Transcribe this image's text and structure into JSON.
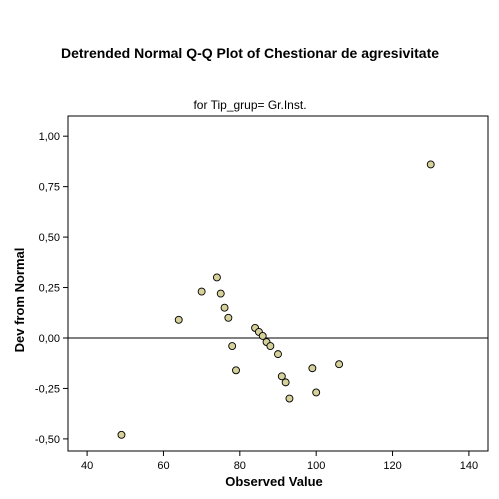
{
  "chart_data": {
    "type": "scatter",
    "title": "Detrended Normal Q-Q Plot of Chestionar de agresivitate",
    "subtitle": "for Tip_grup= Gr.Inst.",
    "xlabel": "Observed Value",
    "ylabel": "Dev from Normal",
    "xlim": [
      35,
      145
    ],
    "ylim": [
      -0.56,
      1.1
    ],
    "xticks": [
      "40",
      "60",
      "80",
      "100",
      "120",
      "140"
    ],
    "xtick_values": [
      40,
      60,
      80,
      100,
      120,
      140
    ],
    "yticks": [
      "-0,50",
      "-0,25",
      "0,00",
      "0,25",
      "0,50",
      "0,75",
      "1,00"
    ],
    "ytick_values": [
      -0.5,
      -0.25,
      0,
      0.25,
      0.5,
      0.75,
      1.0
    ],
    "reference_line": 0,
    "grid": false,
    "marker_color": "#d6d09a",
    "points": [
      {
        "x": 49,
        "y": -0.48
      },
      {
        "x": 64,
        "y": 0.09
      },
      {
        "x": 70,
        "y": 0.23
      },
      {
        "x": 74,
        "y": 0.3
      },
      {
        "x": 75,
        "y": 0.22
      },
      {
        "x": 76,
        "y": 0.15
      },
      {
        "x": 77,
        "y": 0.1
      },
      {
        "x": 78,
        "y": -0.04
      },
      {
        "x": 79,
        "y": -0.16
      },
      {
        "x": 84,
        "y": 0.05
      },
      {
        "x": 85,
        "y": 0.03
      },
      {
        "x": 86,
        "y": 0.01
      },
      {
        "x": 87,
        "y": -0.02
      },
      {
        "x": 88,
        "y": -0.04
      },
      {
        "x": 90,
        "y": -0.08
      },
      {
        "x": 91,
        "y": -0.19
      },
      {
        "x": 92,
        "y": -0.22
      },
      {
        "x": 93,
        "y": -0.3
      },
      {
        "x": 99,
        "y": -0.15
      },
      {
        "x": 100,
        "y": -0.27
      },
      {
        "x": 106,
        "y": -0.13
      },
      {
        "x": 130,
        "y": 0.86
      }
    ]
  }
}
